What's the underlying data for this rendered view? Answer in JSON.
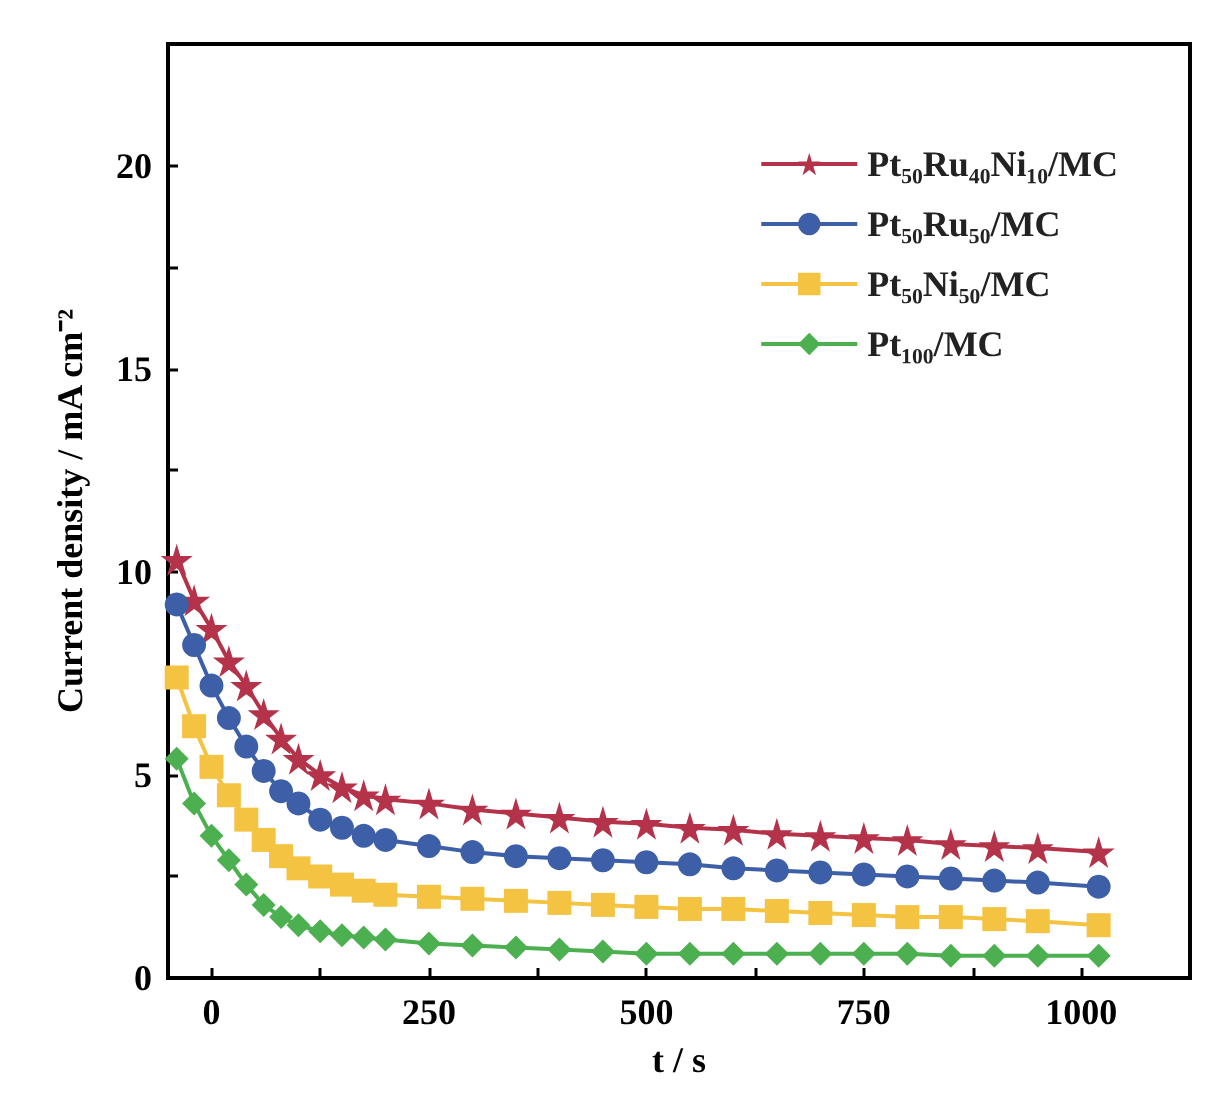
{
  "chart_data": {
    "type": "line",
    "xlabel": "t / s",
    "ylabel": "Current density / mA cm⁻²",
    "x": [
      -40,
      -20,
      0,
      20,
      40,
      60,
      80,
      100,
      125,
      150,
      175,
      200,
      250,
      300,
      350,
      400,
      450,
      500,
      550,
      600,
      650,
      700,
      750,
      800,
      850,
      900,
      950,
      1020
    ],
    "xlim": [
      -50,
      1125
    ],
    "xticks": [
      0,
      {
        "value": 125,
        "label": null
      },
      250,
      {
        "value": 375,
        "label": null
      },
      500,
      {
        "value": 625,
        "label": null
      },
      750,
      {
        "value": 875,
        "label": null
      },
      1000
    ],
    "ylim": [
      0,
      23
    ],
    "yticks": [
      0,
      {
        "value": 2.5,
        "label": null
      },
      5,
      {
        "value": 7.5,
        "label": null
      },
      10,
      {
        "value": 12.5,
        "label": null
      },
      15,
      {
        "value": 17.5,
        "label": null
      },
      20
    ],
    "grid": false,
    "legend": "top right",
    "line_style": "solid",
    "series": [
      {
        "name": "Pt₅₀Ru₄₀Ni₁₀/MC",
        "color": "#b5334a",
        "marker": "star",
        "values": [
          10.3,
          9.3,
          8.6,
          7.8,
          7.2,
          6.5,
          5.9,
          5.4,
          5.0,
          4.7,
          4.5,
          4.4,
          4.3,
          4.15,
          4.05,
          3.95,
          3.85,
          3.8,
          3.7,
          3.65,
          3.55,
          3.5,
          3.45,
          3.4,
          3.3,
          3.25,
          3.2,
          3.1
        ]
      },
      {
        "name": "Pt₅₀Ru₅₀/MC",
        "color": "#3d5fa8",
        "marker": "circle",
        "values": [
          9.2,
          8.2,
          7.2,
          6.4,
          5.7,
          5.1,
          4.6,
          4.3,
          3.9,
          3.7,
          3.5,
          3.4,
          3.25,
          3.1,
          3.0,
          2.95,
          2.9,
          2.85,
          2.8,
          2.7,
          2.65,
          2.6,
          2.55,
          2.5,
          2.45,
          2.4,
          2.35,
          2.25
        ]
      },
      {
        "name": "Pt₅₀Ni₅₀/MC",
        "color": "#f5c342",
        "marker": "square",
        "values": [
          7.4,
          6.2,
          5.2,
          4.5,
          3.9,
          3.4,
          3.0,
          2.7,
          2.5,
          2.3,
          2.15,
          2.05,
          2.0,
          1.95,
          1.9,
          1.85,
          1.8,
          1.75,
          1.7,
          1.7,
          1.65,
          1.6,
          1.55,
          1.5,
          1.5,
          1.45,
          1.4,
          1.3
        ]
      },
      {
        "name": "Pt₁₀₀/MC",
        "color": "#4caf50",
        "marker": "diamond",
        "values": [
          5.4,
          4.3,
          3.5,
          2.9,
          2.3,
          1.8,
          1.5,
          1.3,
          1.15,
          1.05,
          1.0,
          0.95,
          0.85,
          0.8,
          0.75,
          0.7,
          0.65,
          0.6,
          0.6,
          0.6,
          0.6,
          0.6,
          0.6,
          0.6,
          0.55,
          0.55,
          0.55,
          0.55
        ]
      }
    ]
  }
}
